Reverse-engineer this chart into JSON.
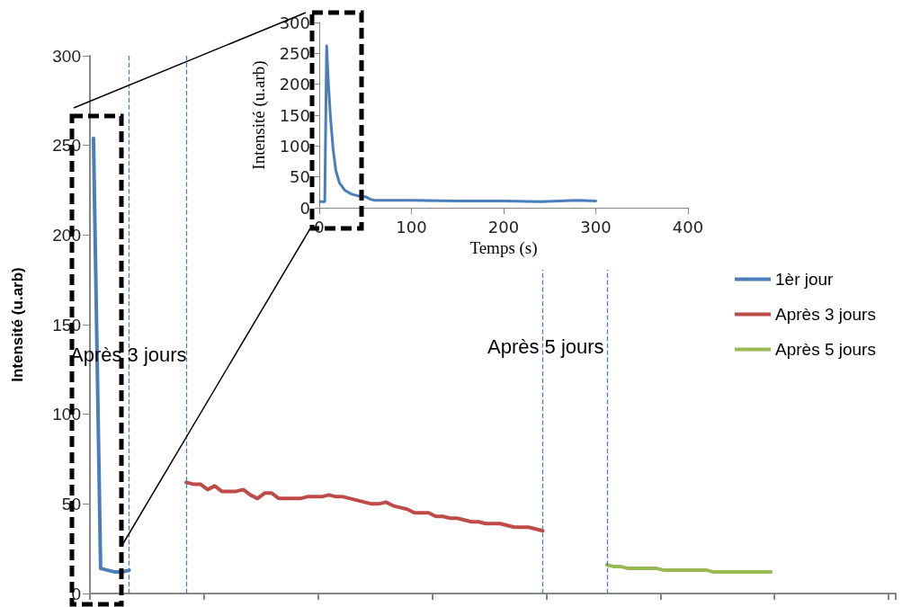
{
  "chart_data": [
    {
      "type": "line",
      "ylabel": "Intensité (u.arb)",
      "categories": [
        null,
        null,
        null,
        null,
        null,
        null,
        null,
        null,
        null,
        null,
        null,
        null,
        null,
        null,
        null,
        null,
        null,
        null,
        null,
        null,
        null,
        null,
        null,
        null,
        null,
        null,
        null,
        null,
        null,
        null,
        null,
        null,
        null,
        null,
        null,
        null,
        null,
        null,
        null,
        null,
        null,
        null,
        null,
        null,
        null,
        null,
        null,
        null,
        null,
        null,
        null,
        null,
        null,
        null,
        null,
        null,
        null,
        null,
        null,
        null,
        null,
        null,
        null,
        null,
        null,
        null,
        null,
        null,
        null,
        null,
        null,
        null,
        null,
        null,
        null,
        null,
        null,
        null,
        null,
        null,
        null,
        null,
        null,
        null,
        null,
        null,
        null,
        null,
        null,
        null,
        null,
        null,
        null,
        null,
        null,
        null,
        null,
        null,
        null,
        null,
        null,
        null,
        null,
        null,
        null,
        null,
        null,
        null,
        null,
        null,
        null,
        null,
        null
      ],
      "ylim": [
        0,
        300
      ],
      "yticks": [
        0,
        50,
        100,
        150,
        200,
        250,
        300
      ],
      "grid": false,
      "legend": "right",
      "marker": "none",
      "line_style": "solid",
      "series": [
        {
          "name": "1èr jour",
          "color": "#4a7ebb",
          "values": [
            254,
            14,
            13,
            12,
            12,
            13,
            null,
            null,
            null,
            null,
            null,
            null,
            null,
            null,
            null,
            null,
            null,
            null,
            null,
            null,
            null,
            null,
            null,
            null,
            null,
            null,
            null,
            null,
            null,
            null,
            null,
            null,
            null,
            null,
            null,
            null,
            null,
            null,
            null,
            null,
            null,
            null,
            null,
            null,
            null,
            null,
            null,
            null,
            null,
            null,
            null,
            null,
            null,
            null,
            null,
            null,
            null,
            null,
            null,
            null,
            null,
            null,
            null,
            null,
            null,
            null,
            null,
            null,
            null,
            null,
            null,
            null,
            null,
            null,
            null,
            null,
            null,
            null,
            null,
            null,
            null,
            null,
            null,
            null,
            null,
            null,
            null,
            null,
            null,
            null,
            null,
            null,
            null,
            null,
            null,
            null,
            null,
            null,
            null,
            null,
            null,
            null,
            null,
            null,
            null,
            null,
            null,
            null,
            null,
            null,
            null,
            null,
            null
          ]
        },
        {
          "name": "Après 3 jours",
          "color": "#be4b48",
          "values": [
            null,
            null,
            null,
            null,
            null,
            null,
            null,
            null,
            null,
            null,
            null,
            null,
            null,
            62,
            61,
            61,
            58,
            60,
            57,
            57,
            57,
            58,
            55,
            53,
            56,
            56,
            53,
            53,
            53,
            53,
            54,
            54,
            54,
            55,
            54,
            54,
            53,
            52,
            51,
            50,
            50,
            51,
            49,
            48,
            47,
            45,
            45,
            45,
            43,
            43,
            42,
            42,
            41,
            40,
            40,
            39,
            39,
            39,
            38,
            37,
            37,
            37,
            36,
            35,
            null,
            null,
            null,
            null,
            null,
            null,
            null,
            null,
            null,
            null,
            null,
            null,
            null,
            null,
            null,
            null,
            null,
            null,
            null,
            null,
            null,
            null,
            null,
            null,
            null,
            null,
            null,
            null,
            null,
            null,
            null,
            null,
            null,
            null,
            null,
            null,
            null,
            null,
            null,
            null,
            null,
            null,
            null,
            null,
            null,
            null,
            null,
            null,
            null
          ]
        },
        {
          "name": "Après 5 jours",
          "color": "#98b954",
          "values": [
            null,
            null,
            null,
            null,
            null,
            null,
            null,
            null,
            null,
            null,
            null,
            null,
            null,
            null,
            null,
            null,
            null,
            null,
            null,
            null,
            null,
            null,
            null,
            null,
            null,
            null,
            null,
            null,
            null,
            null,
            null,
            null,
            null,
            null,
            null,
            null,
            null,
            null,
            null,
            null,
            null,
            null,
            null,
            null,
            null,
            null,
            null,
            null,
            null,
            null,
            null,
            null,
            null,
            null,
            null,
            null,
            null,
            null,
            null,
            null,
            null,
            null,
            null,
            null,
            null,
            null,
            null,
            null,
            null,
            null,
            null,
            null,
            16,
            15,
            15,
            14,
            14,
            14,
            14,
            14,
            13,
            13,
            13,
            13,
            13,
            13,
            13,
            12,
            12,
            12,
            12,
            12,
            12,
            12,
            12,
            12,
            null,
            null,
            null,
            null,
            null,
            null,
            null,
            null,
            null,
            null,
            null,
            null,
            null,
            null,
            null,
            null,
            null
          ]
        }
      ],
      "annotations": [
        "Après 3 jours",
        "Après 5 jours"
      ]
    },
    {
      "type": "line",
      "xlabel": "Temps (s)",
      "ylabel": "Intensité (u.arb)",
      "xlim": [
        0,
        400
      ],
      "xticks": [
        0,
        100,
        200,
        300,
        400
      ],
      "ylim": [
        0,
        300
      ],
      "yticks": [
        0,
        50,
        100,
        150,
        200,
        250,
        300
      ],
      "grid": false,
      "legend": false,
      "marker": "none",
      "line_style": "solid",
      "series": [
        {
          "color": "#4a7ebb",
          "x": [
            1,
            5,
            6,
            8,
            10,
            12,
            15,
            18,
            22,
            28,
            35,
            45,
            50,
            55,
            60,
            100,
            150,
            200,
            240,
            260,
            280,
            300
          ],
          "values": [
            10,
            10,
            10,
            262,
            200,
            150,
            95,
            60,
            40,
            28,
            22,
            18,
            18,
            14,
            12,
            12,
            11,
            11,
            10,
            11,
            12,
            11
          ]
        }
      ]
    }
  ]
}
